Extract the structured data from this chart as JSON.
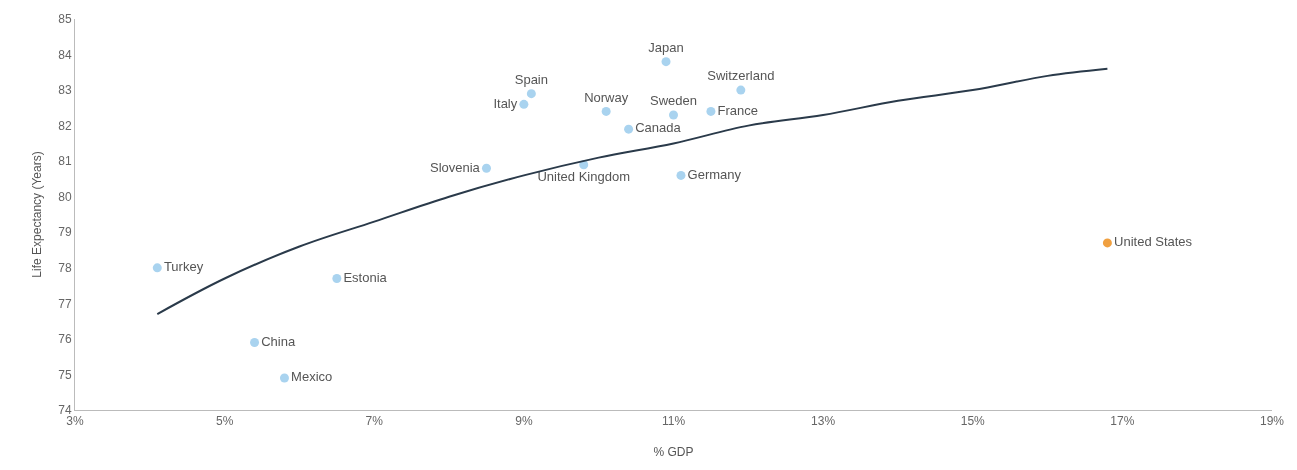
{
  "chart_data": {
    "type": "scatter",
    "xlabel": "% GDP",
    "ylabel": "Life Expectancy (Years)",
    "xlim": [
      3,
      19
    ],
    "ylim": [
      74,
      85
    ],
    "xticks": [
      {
        "value": 3,
        "label": "3%"
      },
      {
        "value": 5,
        "label": "5%"
      },
      {
        "value": 7,
        "label": "7%"
      },
      {
        "value": 9,
        "label": "9%"
      },
      {
        "value": 11,
        "label": "11%"
      },
      {
        "value": 13,
        "label": "13%"
      },
      {
        "value": 15,
        "label": "15%"
      },
      {
        "value": 17,
        "label": "17%"
      },
      {
        "value": 19,
        "label": "19%"
      }
    ],
    "yticks": [
      74,
      75,
      76,
      77,
      78,
      79,
      80,
      81,
      82,
      83,
      84,
      85
    ],
    "grid": false,
    "legend": false,
    "marker": "circle",
    "series": [
      {
        "name": "Japan",
        "color": "#a9d3ef",
        "x": [
          10.9
        ],
        "values": [
          83.8
        ]
      },
      {
        "name": "Spain",
        "color": "#a9d3ef",
        "x": [
          9.1
        ],
        "values": [
          82.9
        ]
      },
      {
        "name": "Italy",
        "color": "#a9d3ef",
        "x": [
          9.0
        ],
        "values": [
          82.6
        ]
      },
      {
        "name": "Norway",
        "color": "#a9d3ef",
        "x": [
          10.1
        ],
        "values": [
          82.4
        ]
      },
      {
        "name": "Switzerland",
        "color": "#a9d3ef",
        "x": [
          11.9
        ],
        "values": [
          83.0
        ]
      },
      {
        "name": "France",
        "color": "#a9d3ef",
        "x": [
          11.5
        ],
        "values": [
          82.4
        ]
      },
      {
        "name": "Sweden",
        "color": "#a9d3ef",
        "x": [
          11.0
        ],
        "values": [
          82.3
        ]
      },
      {
        "name": "Canada",
        "color": "#a9d3ef",
        "x": [
          10.4
        ],
        "values": [
          81.9
        ]
      },
      {
        "name": "Slovenia",
        "color": "#a9d3ef",
        "x": [
          8.5
        ],
        "values": [
          80.8
        ]
      },
      {
        "name": "United Kingdom",
        "color": "#a9d3ef",
        "x": [
          9.8
        ],
        "values": [
          80.9
        ]
      },
      {
        "name": "Germany",
        "color": "#a9d3ef",
        "x": [
          11.1
        ],
        "values": [
          80.6
        ]
      },
      {
        "name": "Turkey",
        "color": "#a9d3ef",
        "x": [
          4.1
        ],
        "values": [
          78.0
        ]
      },
      {
        "name": "Estonia",
        "color": "#a9d3ef",
        "x": [
          6.5
        ],
        "values": [
          77.7
        ]
      },
      {
        "name": "China",
        "color": "#a9d3ef",
        "x": [
          5.4
        ],
        "values": [
          75.9
        ]
      },
      {
        "name": "Mexico",
        "color": "#a9d3ef",
        "x": [
          5.8
        ],
        "values": [
          74.9
        ]
      },
      {
        "name": "United States",
        "color": "#f0a040",
        "x": [
          16.8
        ],
        "values": [
          78.7
        ]
      },
      {
        "type": "line",
        "color": "#2a3a4a",
        "line_style": "solid",
        "marker": "none",
        "x": [
          4.1,
          5,
          6,
          7,
          8,
          9,
          10,
          11,
          12,
          13,
          14,
          15,
          16,
          16.8
        ],
        "values": [
          76.7,
          77.7,
          78.6,
          79.3,
          80.0,
          80.6,
          81.1,
          81.5,
          82.0,
          82.3,
          82.7,
          83.0,
          83.4,
          83.6
        ]
      }
    ]
  }
}
